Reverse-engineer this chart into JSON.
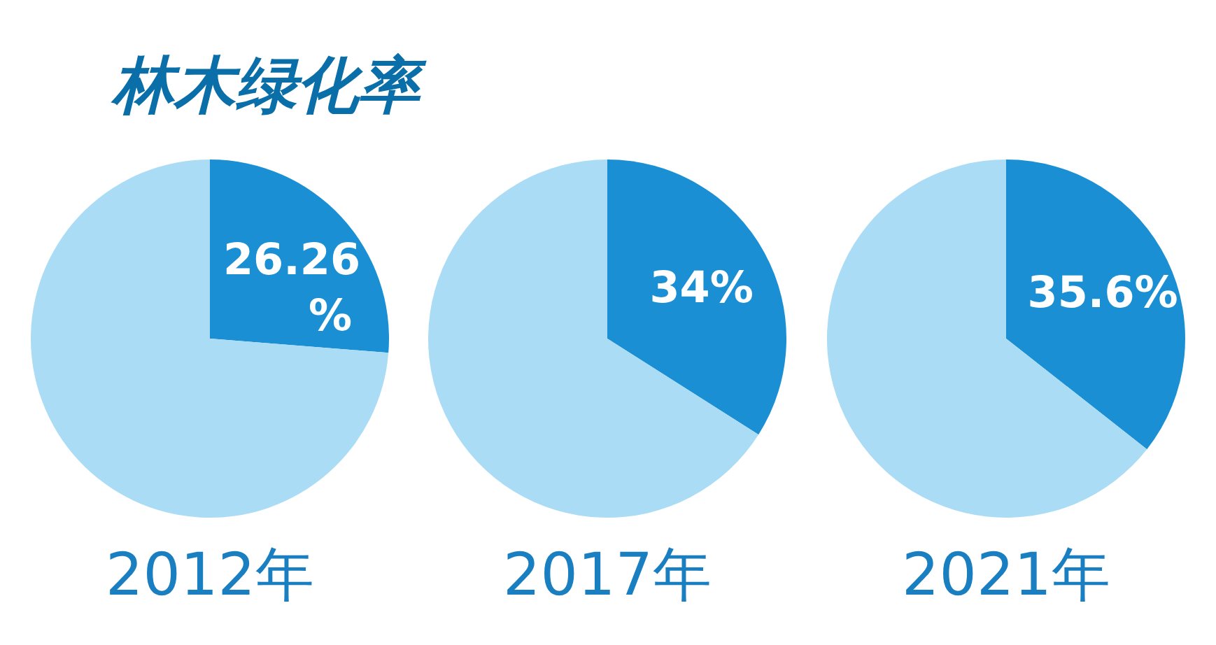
{
  "chart_data": [
    {
      "type": "pie",
      "title": "林木绿化率",
      "categories": [
        null,
        null
      ],
      "values": [
        26.26,
        73.74
      ],
      "colors": [
        "#1a8fd4",
        "#aadcf5"
      ],
      "value_labels": [
        "26.26%",
        null
      ],
      "xlabel": "2012年"
    },
    {
      "type": "pie",
      "categories": [
        null,
        null
      ],
      "values": [
        34,
        66
      ],
      "colors": [
        "#1a8fd4",
        "#aadcf5"
      ],
      "value_labels": [
        "34%",
        null
      ],
      "xlabel": "2017年"
    },
    {
      "type": "pie",
      "categories": [
        null,
        null
      ],
      "values": [
        35.6,
        64.4
      ],
      "colors": [
        "#1a8fd4",
        "#aadcf5"
      ],
      "value_labels": [
        "35.6%",
        null
      ],
      "xlabel": "2021年"
    }
  ]
}
